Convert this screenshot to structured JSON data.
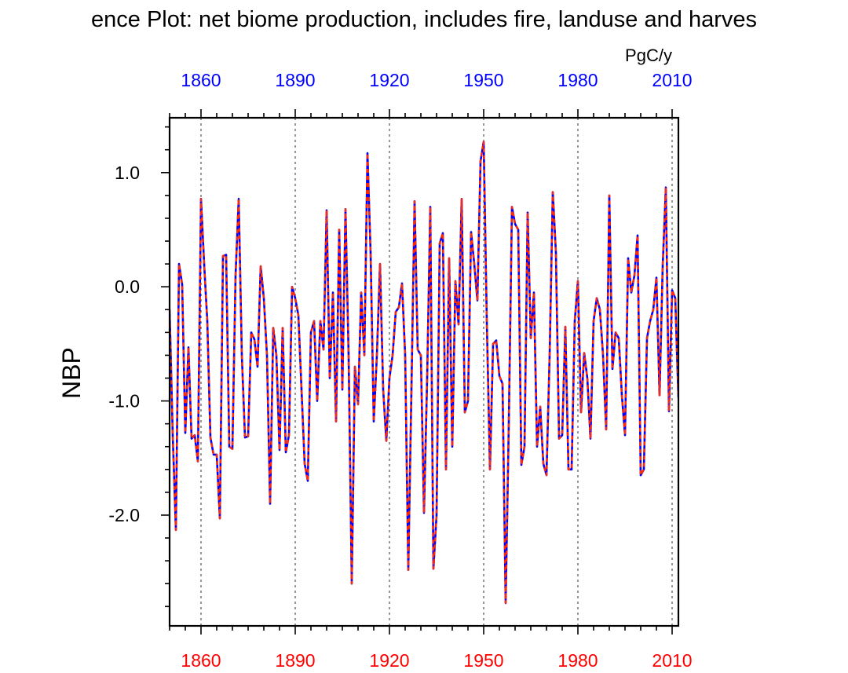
{
  "chart_data": {
    "type": "line",
    "title": "ence Plot: net biome production, includes fire, landuse and harves",
    "units": "PgC/y",
    "ylabel": "NBP",
    "xlabel": "",
    "xlim": [
      1850,
      2012
    ],
    "ylim": [
      -2.97,
      1.48
    ],
    "x_ticks": [
      1860,
      1890,
      1920,
      1950,
      1980,
      2010
    ],
    "x_tick_labels": [
      "1860",
      "1890",
      "1920",
      "1950",
      "1980",
      "2010"
    ],
    "y_ticks": [
      1.0,
      0.0,
      -1.0,
      -2.0
    ],
    "y_tick_labels": [
      "1.0",
      "0.0",
      "-1.0",
      "-2.0"
    ],
    "grid": "vertical dashed lines at major x ticks",
    "colors": {
      "series_a": "#0000ff",
      "series_b": "#ff2a00",
      "top_ticks": "#0000ff",
      "bottom_ticks": "#ff0000"
    },
    "x": [
      1850,
      1851,
      1852,
      1853,
      1854,
      1855,
      1856,
      1857,
      1858,
      1859,
      1860,
      1861,
      1862,
      1863,
      1864,
      1865,
      1866,
      1867,
      1868,
      1869,
      1870,
      1871,
      1872,
      1873,
      1874,
      1875,
      1876,
      1877,
      1878,
      1879,
      1880,
      1881,
      1882,
      1883,
      1884,
      1885,
      1886,
      1887,
      1888,
      1889,
      1890,
      1891,
      1892,
      1893,
      1894,
      1895,
      1896,
      1897,
      1898,
      1899,
      1900,
      1901,
      1902,
      1903,
      1904,
      1905,
      1906,
      1907,
      1908,
      1909,
      1910,
      1911,
      1912,
      1913,
      1914,
      1915,
      1916,
      1917,
      1918,
      1919,
      1920,
      1921,
      1922,
      1923,
      1924,
      1925,
      1926,
      1927,
      1928,
      1929,
      1930,
      1931,
      1932,
      1933,
      1934,
      1935,
      1936,
      1937,
      1938,
      1939,
      1940,
      1941,
      1942,
      1943,
      1944,
      1945,
      1946,
      1947,
      1948,
      1949,
      1950,
      1951,
      1952,
      1953,
      1954,
      1955,
      1956,
      1957,
      1958,
      1959,
      1960,
      1961,
      1962,
      1963,
      1964,
      1965,
      1966,
      1967,
      1968,
      1969,
      1970,
      1971,
      1972,
      1973,
      1974,
      1975,
      1976,
      1977,
      1978,
      1979,
      1980,
      1981,
      1982,
      1983,
      1984,
      1985,
      1986,
      1987,
      1988,
      1989,
      1990,
      1991,
      1992,
      1993,
      1994,
      1995,
      1996,
      1997,
      1998,
      1999,
      2000,
      2001,
      2002,
      2003,
      2004,
      2005,
      2006,
      2007,
      2008,
      2009,
      2010,
      2011,
      2012
    ],
    "series": [
      {
        "values": [
          -0.2,
          -1.3,
          -2.13,
          0.2,
          0.02,
          -1.28,
          -0.53,
          -1.33,
          -1.3,
          -1.53,
          0.77,
          0.2,
          -0.3,
          -1.32,
          -1.47,
          -1.47,
          -2.03,
          0.27,
          0.28,
          -1.4,
          -1.42,
          0.1,
          0.77,
          -0.6,
          -1.32,
          -1.31,
          -0.4,
          -0.46,
          -0.7,
          0.18,
          -0.1,
          -0.6,
          -1.9,
          -0.36,
          -0.6,
          -1.43,
          -0.36,
          -1.45,
          -1.3,
          0.0,
          -0.1,
          -0.25,
          -0.9,
          -1.55,
          -1.7,
          -0.4,
          -0.3,
          -1.0,
          -0.3,
          -0.55,
          0.67,
          -0.8,
          -0.05,
          -1.18,
          0.5,
          -0.9,
          0.68,
          -0.6,
          -2.6,
          -0.7,
          -1.03,
          -0.05,
          -0.6,
          1.17,
          0.3,
          -1.18,
          -0.6,
          0.2,
          -0.9,
          -1.35,
          -0.8,
          -0.6,
          -0.22,
          -0.18,
          0.03,
          -0.6,
          -2.48,
          -0.9,
          0.75,
          -0.55,
          -0.6,
          -1.98,
          -0.8,
          0.7,
          -2.47,
          -2.0,
          0.38,
          0.47,
          -1.6,
          0.25,
          -1.4,
          0.05,
          -0.33,
          0.77,
          -1.1,
          -1.0,
          0.48,
          0.2,
          -0.12,
          1.1,
          1.27,
          -0.3,
          -1.6,
          -0.5,
          -0.47,
          -0.78,
          -0.85,
          -2.77,
          -1.2,
          0.7,
          0.55,
          0.5,
          -1.56,
          -1.4,
          0.65,
          -0.45,
          -0.05,
          -1.4,
          -1.05,
          -1.55,
          -1.65,
          -0.6,
          0.83,
          0.3,
          -1.33,
          -1.3,
          -0.35,
          -1.6,
          -1.6,
          -0.3,
          0.05,
          -1.1,
          -0.58,
          -0.8,
          -1.33,
          -0.3,
          -0.1,
          -0.2,
          -0.6,
          -1.25,
          0.8,
          -0.72,
          -0.4,
          -0.45,
          -0.95,
          -1.3,
          0.25,
          -0.05,
          0.1,
          0.45,
          -1.65,
          -1.6,
          -0.45,
          -0.3,
          -0.2,
          0.08,
          -0.95,
          0.18,
          0.87,
          -1.09,
          -0.03,
          -0.1,
          -0.97
        ]
      },
      {
        "values": [
          -0.2,
          -1.3,
          -2.13,
          0.2,
          0.02,
          -1.28,
          -0.53,
          -1.33,
          -1.3,
          -1.53,
          0.77,
          0.2,
          -0.3,
          -1.32,
          -1.47,
          -1.47,
          -2.03,
          0.27,
          0.28,
          -1.4,
          -1.42,
          0.1,
          0.77,
          -0.6,
          -1.32,
          -1.31,
          -0.4,
          -0.46,
          -0.7,
          0.18,
          -0.1,
          -0.6,
          -1.9,
          -0.36,
          -0.6,
          -1.43,
          -0.36,
          -1.45,
          -1.3,
          0.0,
          -0.1,
          -0.25,
          -0.9,
          -1.55,
          -1.7,
          -0.4,
          -0.3,
          -1.0,
          -0.3,
          -0.55,
          0.67,
          -0.8,
          -0.05,
          -1.18,
          0.5,
          -0.9,
          0.68,
          -0.6,
          -2.6,
          -0.7,
          -1.03,
          -0.05,
          -0.6,
          1.17,
          0.3,
          -1.18,
          -0.6,
          0.2,
          -0.9,
          -1.35,
          -0.8,
          -0.6,
          -0.22,
          -0.18,
          0.03,
          -0.6,
          -2.48,
          -0.9,
          0.75,
          -0.55,
          -0.6,
          -1.98,
          -0.8,
          0.7,
          -2.47,
          -2.0,
          0.38,
          0.47,
          -1.6,
          0.25,
          -1.4,
          0.05,
          -0.33,
          0.77,
          -1.1,
          -1.0,
          0.48,
          0.2,
          -0.12,
          1.1,
          1.27,
          -0.3,
          -1.6,
          -0.5,
          -0.47,
          -0.78,
          -0.85,
          -2.77,
          -1.2,
          0.7,
          0.55,
          0.5,
          -1.56,
          -1.4,
          0.65,
          -0.45,
          -0.05,
          -1.4,
          -1.05,
          -1.55,
          -1.65,
          -0.6,
          0.83,
          0.3,
          -1.33,
          -1.3,
          -0.35,
          -1.6,
          -1.6,
          -0.3,
          0.05,
          -1.1,
          -0.58,
          -0.8,
          -1.33,
          -0.3,
          -0.1,
          -0.2,
          -0.6,
          -1.25,
          0.8,
          -0.72,
          -0.4,
          -0.45,
          -0.95,
          -1.3,
          0.25,
          -0.05,
          0.1,
          0.45,
          -1.65,
          -1.6,
          -0.45,
          -0.3,
          -0.2,
          0.08,
          -0.95,
          0.18,
          0.87,
          -1.09,
          -0.03,
          -0.1,
          -0.97
        ]
      }
    ]
  }
}
